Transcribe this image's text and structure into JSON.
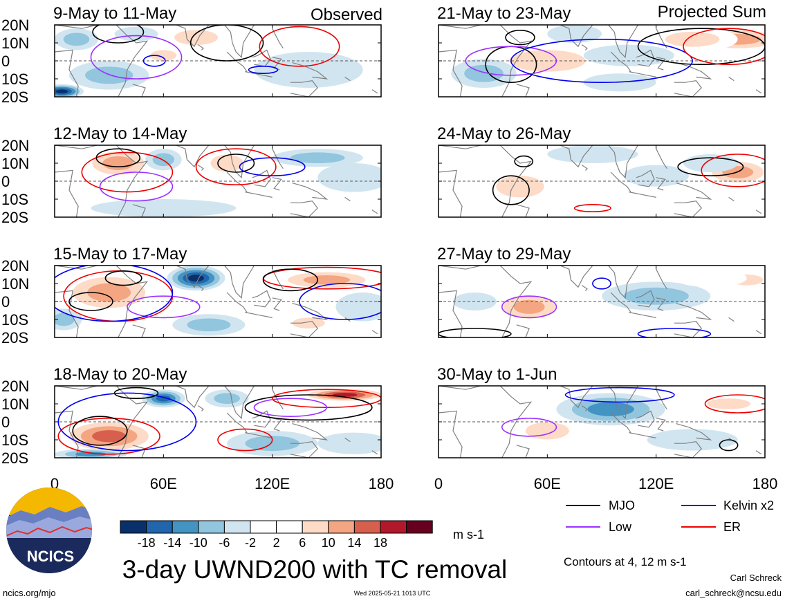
{
  "observed_label": "Observed",
  "projected_label": "Projected Sum",
  "colors": {
    "scale": [
      "#08306b",
      "#2166ac",
      "#4393c3",
      "#92c5de",
      "#d1e5f0",
      "#ffffff",
      "#ffffff",
      "#fddbc7",
      "#f4a582",
      "#d6604d",
      "#b2182b",
      "#67001f"
    ],
    "land": "#808080",
    "mjo": "#000000",
    "low": "#9b30ff",
    "kelvin": "#0000ee",
    "er": "#ee0000"
  },
  "chart_data": {
    "type": "heatmap",
    "variable": "3-day UWND200 with TC removal",
    "units": "m s-1",
    "lat_ticks": [
      "20N",
      "10N",
      "0",
      "10S",
      "20S"
    ],
    "lon_ticks": [
      "0",
      "60E",
      "120E",
      "180"
    ],
    "lat_range": [
      -20,
      20
    ],
    "lon_range": [
      0,
      180
    ],
    "colorbar_levels": [
      "-18",
      "-14",
      "-10",
      "-6",
      "-2",
      "2",
      "6",
      "10",
      "14",
      "18"
    ],
    "contour_note": "Contours at 4, 12 m s-1",
    "legend": [
      {
        "name": "MJO",
        "color_key": "mjo"
      },
      {
        "name": "Kelvin x2",
        "color_key": "kelvin"
      },
      {
        "name": "Low",
        "color_key": "low"
      },
      {
        "name": "ER",
        "color_key": "er"
      }
    ],
    "panels": [
      {
        "title": "9-May to 11-May",
        "group": "observed",
        "features": [
          {
            "lon": 4,
            "lat": -17,
            "rx": 12,
            "ry": 4,
            "v": -18
          },
          {
            "lon": 30,
            "lat": -8,
            "rx": 22,
            "ry": 8,
            "v": -8
          },
          {
            "lon": 12,
            "lat": 12,
            "rx": 12,
            "ry": 6,
            "v": -6
          },
          {
            "lon": 60,
            "lat": 3,
            "rx": 12,
            "ry": 5,
            "v": 6
          },
          {
            "lon": 78,
            "lat": 13,
            "rx": 20,
            "ry": 7,
            "v": 6
          },
          {
            "lon": 100,
            "lat": 3,
            "rx": 14,
            "ry": 6,
            "v": 4
          },
          {
            "lon": 140,
            "lat": -5,
            "rx": 30,
            "ry": 10,
            "v": -5
          },
          {
            "lon": 160,
            "lat": 12,
            "rx": 20,
            "ry": 6,
            "v": 4
          },
          {
            "lon": 45,
            "lat": 15,
            "rx": 12,
            "ry": 4,
            "v": -4
          }
        ],
        "contours": [
          {
            "key": "mjo",
            "lon": 35,
            "lat": 16,
            "rx": 14,
            "ry": 6
          },
          {
            "key": "mjo",
            "lon": 95,
            "lat": 10,
            "rx": 20,
            "ry": 10
          },
          {
            "key": "low",
            "lon": 45,
            "lat": 2,
            "rx": 25,
            "ry": 12
          },
          {
            "key": "er",
            "lon": 135,
            "lat": 8,
            "rx": 22,
            "ry": 11
          },
          {
            "key": "kelvin",
            "lon": 55,
            "lat": 0,
            "rx": 6,
            "ry": 3
          },
          {
            "key": "kelvin",
            "lon": 115,
            "lat": -5,
            "rx": 8,
            "ry": 2
          }
        ]
      },
      {
        "title": "21-May to 23-May",
        "group": "projected",
        "features": [
          {
            "lon": 165,
            "lat": 12,
            "rx": 30,
            "ry": 7,
            "v": 12
          },
          {
            "lon": 140,
            "lat": 12,
            "rx": 25,
            "ry": 7,
            "v": 6
          },
          {
            "lon": 60,
            "lat": 0,
            "rx": 35,
            "ry": 10,
            "v": 8
          },
          {
            "lon": 25,
            "lat": -7,
            "rx": 18,
            "ry": 8,
            "v": -6
          },
          {
            "lon": 105,
            "lat": 3,
            "rx": 25,
            "ry": 6,
            "v": -2
          },
          {
            "lon": 100,
            "lat": -12,
            "rx": 20,
            "ry": 5,
            "v": -3
          },
          {
            "lon": 75,
            "lat": 15,
            "rx": 15,
            "ry": 5,
            "v": -3
          }
        ],
        "contours": [
          {
            "key": "mjo",
            "lon": 40,
            "lat": -2,
            "rx": 14,
            "ry": 10
          },
          {
            "key": "mjo",
            "lon": 145,
            "lat": 8,
            "rx": 35,
            "ry": 10
          },
          {
            "key": "mjo",
            "lon": 45,
            "lat": 13,
            "rx": 8,
            "ry": 4
          },
          {
            "key": "low",
            "lon": 40,
            "lat": 0,
            "rx": 25,
            "ry": 8
          },
          {
            "key": "kelvin",
            "lon": 90,
            "lat": 0,
            "rx": 50,
            "ry": 12
          },
          {
            "key": "er",
            "lon": 160,
            "lat": 8,
            "rx": 25,
            "ry": 10
          }
        ]
      },
      {
        "title": "12-May to 14-May",
        "group": "observed",
        "features": [
          {
            "lon": 35,
            "lat": 10,
            "rx": 20,
            "ry": 9,
            "v": 10
          },
          {
            "lon": 95,
            "lat": 10,
            "rx": 15,
            "ry": 8,
            "v": 8
          },
          {
            "lon": 60,
            "lat": 12,
            "rx": 10,
            "ry": 6,
            "v": -6
          },
          {
            "lon": 145,
            "lat": 13,
            "rx": 25,
            "ry": 5,
            "v": -6
          },
          {
            "lon": 60,
            "lat": -15,
            "rx": 40,
            "ry": 5,
            "v": -4
          },
          {
            "lon": 165,
            "lat": 2,
            "rx": 20,
            "ry": 8,
            "v": -3
          }
        ],
        "contours": [
          {
            "key": "er",
            "lon": 40,
            "lat": 5,
            "rx": 25,
            "ry": 11
          },
          {
            "key": "mjo",
            "lon": 35,
            "lat": 13,
            "rx": 12,
            "ry": 5
          },
          {
            "key": "er",
            "lon": 100,
            "lat": 8,
            "rx": 22,
            "ry": 10
          },
          {
            "key": "low",
            "lon": 45,
            "lat": -3,
            "rx": 20,
            "ry": 8
          },
          {
            "key": "kelvin",
            "lon": 120,
            "lat": 8,
            "rx": 18,
            "ry": 5
          },
          {
            "key": "mjo",
            "lon": 100,
            "lat": 10,
            "rx": 10,
            "ry": 5
          }
        ]
      },
      {
        "title": "24-May to 26-May",
        "group": "projected",
        "features": [
          {
            "lon": 165,
            "lat": 5,
            "rx": 20,
            "ry": 8,
            "v": 10
          },
          {
            "lon": 45,
            "lat": -3,
            "rx": 22,
            "ry": 10,
            "v": 6
          },
          {
            "lon": 85,
            "lat": 15,
            "rx": 25,
            "ry": 5,
            "v": -4
          },
          {
            "lon": 120,
            "lat": 3,
            "rx": 18,
            "ry": 6,
            "v": -3
          },
          {
            "lon": 150,
            "lat": 10,
            "rx": 15,
            "ry": 5,
            "v": -3
          }
        ],
        "contours": [
          {
            "key": "mjo",
            "lon": 40,
            "lat": -5,
            "rx": 10,
            "ry": 8
          },
          {
            "key": "mjo",
            "lon": 150,
            "lat": 8,
            "rx": 18,
            "ry": 5
          },
          {
            "key": "mjo",
            "lon": 47,
            "lat": 11,
            "rx": 5,
            "ry": 3
          },
          {
            "key": "er",
            "lon": 165,
            "lat": 6,
            "rx": 20,
            "ry": 9
          },
          {
            "key": "er",
            "lon": 85,
            "lat": -15,
            "rx": 10,
            "ry": 2
          }
        ]
      },
      {
        "title": "15-May to 17-May",
        "group": "observed",
        "features": [
          {
            "lon": 30,
            "lat": 5,
            "rx": 28,
            "ry": 12,
            "v": 12
          },
          {
            "lon": 78,
            "lat": 13,
            "rx": 16,
            "ry": 7,
            "v": -18
          },
          {
            "lon": 150,
            "lat": 12,
            "rx": 30,
            "ry": 6,
            "v": 10
          },
          {
            "lon": 140,
            "lat": -12,
            "rx": 15,
            "ry": 5,
            "v": 6
          },
          {
            "lon": 85,
            "lat": -13,
            "rx": 20,
            "ry": 6,
            "v": -6
          },
          {
            "lon": 5,
            "lat": -10,
            "rx": 10,
            "ry": 6,
            "v": -6
          },
          {
            "lon": 170,
            "lat": -3,
            "rx": 15,
            "ry": 8,
            "v": -3
          }
        ],
        "contours": [
          {
            "key": "er",
            "lon": 35,
            "lat": 3,
            "rx": 30,
            "ry": 14
          },
          {
            "key": "mjo",
            "lon": 20,
            "lat": 0,
            "rx": 12,
            "ry": 5
          },
          {
            "key": "mjo",
            "lon": 38,
            "lat": 13,
            "rx": 10,
            "ry": 4
          },
          {
            "key": "low",
            "lon": 60,
            "lat": -3,
            "rx": 20,
            "ry": 6
          },
          {
            "key": "kelvin",
            "lon": 30,
            "lat": 5,
            "rx": 35,
            "ry": 16
          },
          {
            "key": "er",
            "lon": 150,
            "lat": 13,
            "rx": 35,
            "ry": 6
          },
          {
            "key": "mjo",
            "lon": 130,
            "lat": 12,
            "rx": 15,
            "ry": 6
          },
          {
            "key": "kelvin",
            "lon": 160,
            "lat": 0,
            "rx": 25,
            "ry": 10
          }
        ]
      },
      {
        "title": "27-May to 29-May",
        "group": "projected",
        "features": [
          {
            "lon": 50,
            "lat": -3,
            "rx": 20,
            "ry": 9,
            "v": 10
          },
          {
            "lon": 120,
            "lat": 3,
            "rx": 30,
            "ry": 8,
            "v": -6
          },
          {
            "lon": 170,
            "lat": 12,
            "rx": 15,
            "ry": 5,
            "v": 6
          },
          {
            "lon": 150,
            "lat": 13,
            "rx": 20,
            "ry": 5,
            "v": 4
          },
          {
            "lon": 20,
            "lat": 0,
            "rx": 12,
            "ry": 5,
            "v": -3
          }
        ],
        "contours": [
          {
            "key": "low",
            "lon": 50,
            "lat": -3,
            "rx": 15,
            "ry": 6
          },
          {
            "key": "kelvin",
            "lon": 90,
            "lat": 10,
            "rx": 5,
            "ry": 3
          },
          {
            "key": "kelvin",
            "lon": 130,
            "lat": -18,
            "rx": 20,
            "ry": 3
          },
          {
            "key": "mjo",
            "lon": 20,
            "lat": -18,
            "rx": 20,
            "ry": 3
          }
        ]
      },
      {
        "title": "18-May to 20-May",
        "group": "observed",
        "features": [
          {
            "lon": 30,
            "lat": -8,
            "rx": 28,
            "ry": 10,
            "v": 16
          },
          {
            "lon": 160,
            "lat": 15,
            "rx": 25,
            "ry": 4,
            "v": 18
          },
          {
            "lon": 60,
            "lat": 13,
            "rx": 12,
            "ry": 5,
            "v": -16
          },
          {
            "lon": 95,
            "lat": 13,
            "rx": 12,
            "ry": 5,
            "v": -6
          },
          {
            "lon": 120,
            "lat": -12,
            "rx": 25,
            "ry": 7,
            "v": -6
          },
          {
            "lon": 20,
            "lat": -18,
            "rx": 20,
            "ry": 3,
            "v": -10
          },
          {
            "lon": 140,
            "lat": 5,
            "rx": 25,
            "ry": 6,
            "v": 4
          },
          {
            "lon": 165,
            "lat": -12,
            "rx": 20,
            "ry": 6,
            "v": -4
          }
        ],
        "contours": [
          {
            "key": "er",
            "lon": 30,
            "lat": -8,
            "rx": 28,
            "ry": 10
          },
          {
            "key": "mjo",
            "lon": 25,
            "lat": -5,
            "rx": 15,
            "ry": 8
          },
          {
            "key": "mjo",
            "lon": 45,
            "lat": 16,
            "rx": 12,
            "ry": 3
          },
          {
            "key": "kelvin",
            "lon": 40,
            "lat": 0,
            "rx": 38,
            "ry": 16
          },
          {
            "key": "mjo",
            "lon": 140,
            "lat": 8,
            "rx": 35,
            "ry": 7
          },
          {
            "key": "er",
            "lon": 150,
            "lat": 13,
            "rx": 30,
            "ry": 5
          },
          {
            "key": "er",
            "lon": 105,
            "lat": -10,
            "rx": 15,
            "ry": 6
          },
          {
            "key": "low",
            "lon": 130,
            "lat": 8,
            "rx": 20,
            "ry": 5
          }
        ]
      },
      {
        "title": "30-May to 1-Jun",
        "group": "projected",
        "features": [
          {
            "lon": 95,
            "lat": 7,
            "rx": 30,
            "ry": 9,
            "v": -10
          },
          {
            "lon": 60,
            "lat": -5,
            "rx": 20,
            "ry": 8,
            "v": 6
          },
          {
            "lon": 160,
            "lat": 10,
            "rx": 20,
            "ry": 5,
            "v": 6
          },
          {
            "lon": 20,
            "lat": -5,
            "rx": 15,
            "ry": 6,
            "v": 4
          },
          {
            "lon": 140,
            "lat": -10,
            "rx": 25,
            "ry": 6,
            "v": -3
          }
        ],
        "contours": [
          {
            "key": "low",
            "lon": 50,
            "lat": -3,
            "rx": 15,
            "ry": 5
          },
          {
            "key": "mjo",
            "lon": 160,
            "lat": -13,
            "rx": 5,
            "ry": 3
          },
          {
            "key": "er",
            "lon": 165,
            "lat": 10,
            "rx": 18,
            "ry": 5
          },
          {
            "key": "kelvin",
            "lon": 100,
            "lat": 15,
            "rx": 30,
            "ry": 4
          }
        ]
      }
    ]
  },
  "footer": {
    "main_title": "3-day UWND200 with TC removal",
    "logo_text": "NCICS",
    "url": "ncics.org/mjo",
    "timestamp": "Wed 2025-05-21 1013 UTC",
    "author": "Carl Schreck",
    "email": "carl_schreck@ncsu.edu"
  }
}
